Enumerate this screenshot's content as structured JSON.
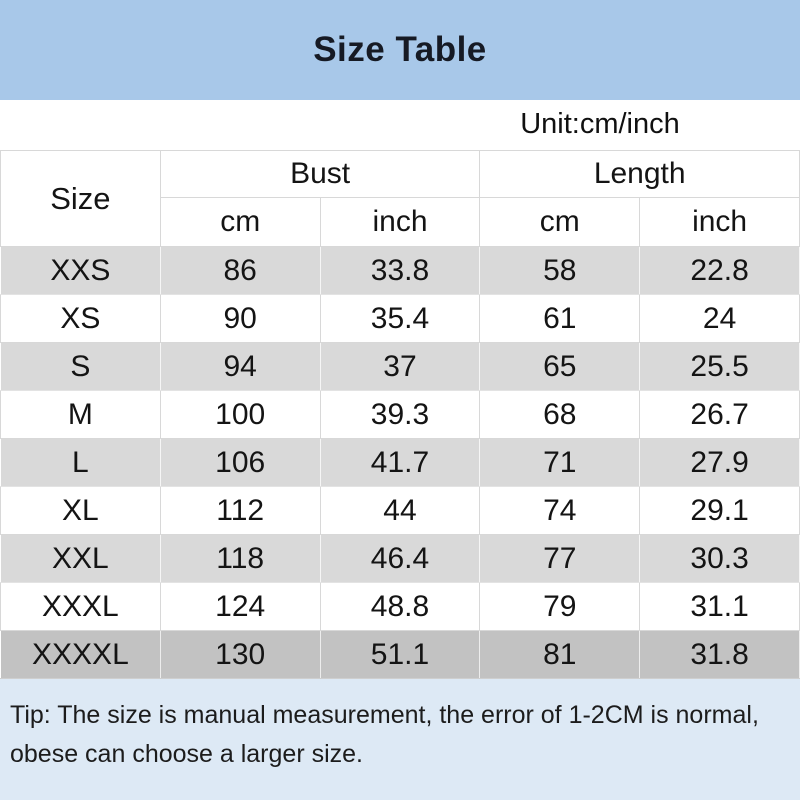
{
  "page": {
    "title": "Size Table",
    "unit_label": "Unit:cm/inch"
  },
  "table": {
    "size_header": "Size",
    "group_headers": [
      "Bust",
      "Length"
    ],
    "sub_headers": [
      "cm",
      "inch",
      "cm",
      "inch"
    ],
    "column_keys": [
      "size",
      "bust_cm",
      "bust_inch",
      "length_cm",
      "length_inch"
    ],
    "rows": [
      {
        "size": "XXS",
        "bust_cm": "86",
        "bust_inch": "33.8",
        "length_cm": "58",
        "length_inch": "22.8"
      },
      {
        "size": "XS",
        "bust_cm": "90",
        "bust_inch": "35.4",
        "length_cm": "61",
        "length_inch": "24"
      },
      {
        "size": "S",
        "bust_cm": "94",
        "bust_inch": "37",
        "length_cm": "65",
        "length_inch": "25.5"
      },
      {
        "size": "M",
        "bust_cm": "100",
        "bust_inch": "39.3",
        "length_cm": "68",
        "length_inch": "26.7"
      },
      {
        "size": "L",
        "bust_cm": "106",
        "bust_inch": "41.7",
        "length_cm": "71",
        "length_inch": "27.9"
      },
      {
        "size": "XL",
        "bust_cm": "112",
        "bust_inch": "44",
        "length_cm": "74",
        "length_inch": "29.1"
      },
      {
        "size": "XXL",
        "bust_cm": "118",
        "bust_inch": "46.4",
        "length_cm": "77",
        "length_inch": "30.3"
      },
      {
        "size": "XXXL",
        "bust_cm": "124",
        "bust_inch": "48.8",
        "length_cm": "79",
        "length_inch": "31.1"
      },
      {
        "size": "XXXXL",
        "bust_cm": "130",
        "bust_inch": "51.1",
        "length_cm": "81",
        "length_inch": "31.8"
      }
    ]
  },
  "tip": {
    "lines": [
      "Tip: The size is manual measurement, the error of 1-2CM is normal,",
      "obese can choose a larger size."
    ]
  },
  "colors": {
    "header_bg": "#a8c8e9",
    "tip_bg": "#dde9f5",
    "row_gray": "#d9d9d9",
    "row_dark_gray": "#c2c2c2",
    "gridline": "#d8d8d8",
    "text": "#141414"
  }
}
